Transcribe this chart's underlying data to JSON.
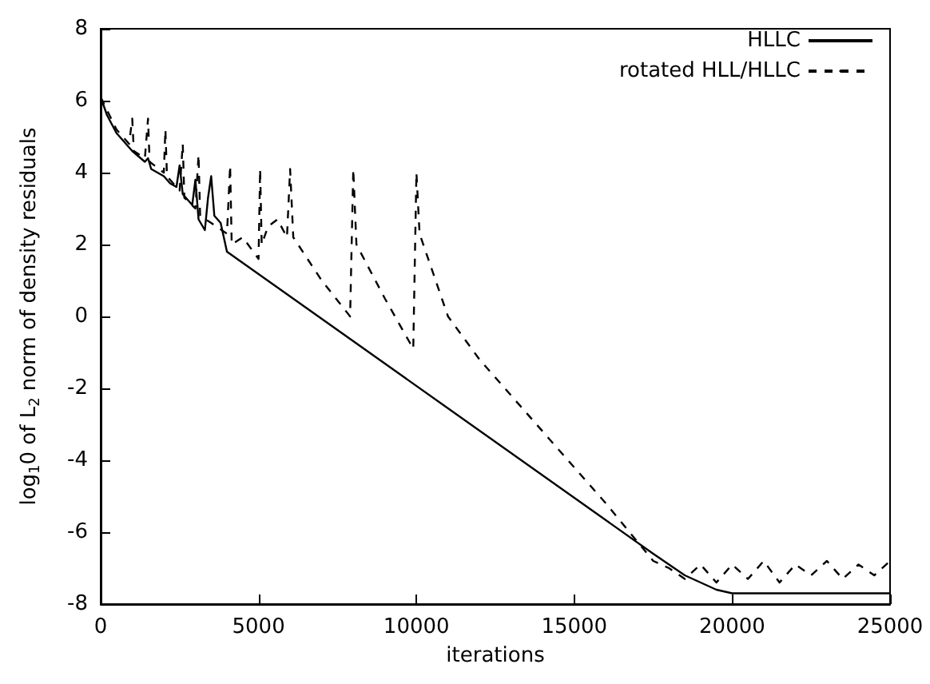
{
  "chart_data": {
    "type": "line",
    "xlabel": "iterations",
    "ylabel": "log$_{1}$0 of L$_{2}$ norm of density residuals",
    "xlim": [
      0,
      25000
    ],
    "xticks": [
      0,
      5000,
      10000,
      15000,
      20000,
      25000
    ],
    "ylim": [
      -8,
      8
    ],
    "yticks": [
      -8,
      -6,
      -4,
      -2,
      0,
      2,
      4,
      6,
      8
    ],
    "grid": false,
    "legend": "top right",
    "marker": "none",
    "series": [
      {
        "name": "HLLC",
        "color": "#000000",
        "line_style": "solid",
        "x": [
          0,
          200,
          500,
          1000,
          1400,
          1500,
          1600,
          2000,
          2200,
          2400,
          2500,
          2600,
          2900,
          3000,
          3100,
          3300,
          3400,
          3500,
          3600,
          3800,
          4000,
          17500,
          18500,
          19500,
          20000,
          25000
        ],
        "values": [
          6.1,
          5.6,
          5.1,
          4.6,
          4.3,
          4.4,
          4.1,
          3.9,
          3.7,
          3.6,
          4.2,
          3.4,
          3.1,
          3.8,
          2.7,
          2.4,
          3.3,
          3.9,
          2.8,
          2.6,
          1.8,
          -6.6,
          -7.2,
          -7.6,
          -7.7,
          -7.7
        ]
      },
      {
        "name": "rotated HLL/HLLC",
        "color": "#000000",
        "line_style": "dashed",
        "x": [
          0,
          500,
          900,
          1000,
          1050,
          1400,
          1500,
          1550,
          2000,
          2050,
          2100,
          2500,
          2600,
          2650,
          3000,
          3100,
          3150,
          3500,
          4000,
          4100,
          4150,
          4500,
          5000,
          5050,
          5100,
          5300,
          5600,
          5900,
          6000,
          6100,
          7000,
          7900,
          8000,
          8100,
          9000,
          9900,
          10000,
          10100,
          11000,
          12000,
          14000,
          16000,
          17500,
          18000,
          18500,
          19000,
          19500,
          20000,
          20500,
          21000,
          21500,
          22000,
          22500,
          23000,
          23500,
          24000,
          24500,
          25000
        ],
        "values": [
          6.1,
          5.2,
          4.8,
          5.5,
          4.6,
          4.4,
          5.5,
          4.3,
          4.0,
          5.2,
          3.9,
          3.5,
          4.8,
          3.3,
          3.0,
          4.5,
          2.8,
          2.6,
          2.3,
          4.2,
          2.0,
          2.2,
          1.6,
          4.1,
          2.0,
          2.5,
          2.7,
          2.2,
          4.1,
          2.2,
          1.0,
          0.0,
          4.1,
          2.0,
          0.5,
          -0.9,
          4.0,
          2.3,
          0.0,
          -1.2,
          -3.2,
          -5.2,
          -6.8,
          -7.0,
          -7.3,
          -6.9,
          -7.4,
          -6.9,
          -7.3,
          -6.8,
          -7.4,
          -6.9,
          -7.2,
          -6.8,
          -7.3,
          -6.9,
          -7.2,
          -6.8
        ]
      }
    ]
  }
}
